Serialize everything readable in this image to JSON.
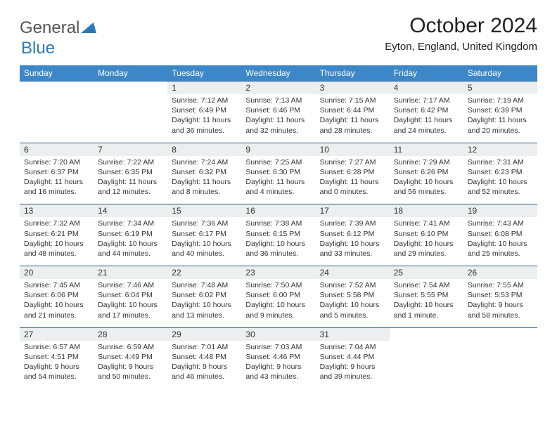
{
  "brand": {
    "part1": "General",
    "part2": "Blue"
  },
  "title": "October 2024",
  "location": "Eyton, England, United Kingdom",
  "colors": {
    "header_bg": "#3b87c8",
    "header_text": "#ffffff",
    "daynum_bg": "#eceeef",
    "border": "#2a5f8a",
    "text": "#333333",
    "brand_gray": "#555555",
    "brand_blue": "#2a7ab8"
  },
  "day_names": [
    "Sunday",
    "Monday",
    "Tuesday",
    "Wednesday",
    "Thursday",
    "Friday",
    "Saturday"
  ],
  "weeks": [
    [
      null,
      null,
      {
        "n": "1",
        "sr": "Sunrise: 7:12 AM",
        "ss": "Sunset: 6:49 PM",
        "dl": "Daylight: 11 hours and 36 minutes."
      },
      {
        "n": "2",
        "sr": "Sunrise: 7:13 AM",
        "ss": "Sunset: 6:46 PM",
        "dl": "Daylight: 11 hours and 32 minutes."
      },
      {
        "n": "3",
        "sr": "Sunrise: 7:15 AM",
        "ss": "Sunset: 6:44 PM",
        "dl": "Daylight: 11 hours and 28 minutes."
      },
      {
        "n": "4",
        "sr": "Sunrise: 7:17 AM",
        "ss": "Sunset: 6:42 PM",
        "dl": "Daylight: 11 hours and 24 minutes."
      },
      {
        "n": "5",
        "sr": "Sunrise: 7:19 AM",
        "ss": "Sunset: 6:39 PM",
        "dl": "Daylight: 11 hours and 20 minutes."
      }
    ],
    [
      {
        "n": "6",
        "sr": "Sunrise: 7:20 AM",
        "ss": "Sunset: 6:37 PM",
        "dl": "Daylight: 11 hours and 16 minutes."
      },
      {
        "n": "7",
        "sr": "Sunrise: 7:22 AM",
        "ss": "Sunset: 6:35 PM",
        "dl": "Daylight: 11 hours and 12 minutes."
      },
      {
        "n": "8",
        "sr": "Sunrise: 7:24 AM",
        "ss": "Sunset: 6:32 PM",
        "dl": "Daylight: 11 hours and 8 minutes."
      },
      {
        "n": "9",
        "sr": "Sunrise: 7:25 AM",
        "ss": "Sunset: 6:30 PM",
        "dl": "Daylight: 11 hours and 4 minutes."
      },
      {
        "n": "10",
        "sr": "Sunrise: 7:27 AM",
        "ss": "Sunset: 6:28 PM",
        "dl": "Daylight: 11 hours and 0 minutes."
      },
      {
        "n": "11",
        "sr": "Sunrise: 7:29 AM",
        "ss": "Sunset: 6:26 PM",
        "dl": "Daylight: 10 hours and 56 minutes."
      },
      {
        "n": "12",
        "sr": "Sunrise: 7:31 AM",
        "ss": "Sunset: 6:23 PM",
        "dl": "Daylight: 10 hours and 52 minutes."
      }
    ],
    [
      {
        "n": "13",
        "sr": "Sunrise: 7:32 AM",
        "ss": "Sunset: 6:21 PM",
        "dl": "Daylight: 10 hours and 48 minutes."
      },
      {
        "n": "14",
        "sr": "Sunrise: 7:34 AM",
        "ss": "Sunset: 6:19 PM",
        "dl": "Daylight: 10 hours and 44 minutes."
      },
      {
        "n": "15",
        "sr": "Sunrise: 7:36 AM",
        "ss": "Sunset: 6:17 PM",
        "dl": "Daylight: 10 hours and 40 minutes."
      },
      {
        "n": "16",
        "sr": "Sunrise: 7:38 AM",
        "ss": "Sunset: 6:15 PM",
        "dl": "Daylight: 10 hours and 36 minutes."
      },
      {
        "n": "17",
        "sr": "Sunrise: 7:39 AM",
        "ss": "Sunset: 6:12 PM",
        "dl": "Daylight: 10 hours and 33 minutes."
      },
      {
        "n": "18",
        "sr": "Sunrise: 7:41 AM",
        "ss": "Sunset: 6:10 PM",
        "dl": "Daylight: 10 hours and 29 minutes."
      },
      {
        "n": "19",
        "sr": "Sunrise: 7:43 AM",
        "ss": "Sunset: 6:08 PM",
        "dl": "Daylight: 10 hours and 25 minutes."
      }
    ],
    [
      {
        "n": "20",
        "sr": "Sunrise: 7:45 AM",
        "ss": "Sunset: 6:06 PM",
        "dl": "Daylight: 10 hours and 21 minutes."
      },
      {
        "n": "21",
        "sr": "Sunrise: 7:46 AM",
        "ss": "Sunset: 6:04 PM",
        "dl": "Daylight: 10 hours and 17 minutes."
      },
      {
        "n": "22",
        "sr": "Sunrise: 7:48 AM",
        "ss": "Sunset: 6:02 PM",
        "dl": "Daylight: 10 hours and 13 minutes."
      },
      {
        "n": "23",
        "sr": "Sunrise: 7:50 AM",
        "ss": "Sunset: 6:00 PM",
        "dl": "Daylight: 10 hours and 9 minutes."
      },
      {
        "n": "24",
        "sr": "Sunrise: 7:52 AM",
        "ss": "Sunset: 5:58 PM",
        "dl": "Daylight: 10 hours and 5 minutes."
      },
      {
        "n": "25",
        "sr": "Sunrise: 7:54 AM",
        "ss": "Sunset: 5:55 PM",
        "dl": "Daylight: 10 hours and 1 minute."
      },
      {
        "n": "26",
        "sr": "Sunrise: 7:55 AM",
        "ss": "Sunset: 5:53 PM",
        "dl": "Daylight: 9 hours and 58 minutes."
      }
    ],
    [
      {
        "n": "27",
        "sr": "Sunrise: 6:57 AM",
        "ss": "Sunset: 4:51 PM",
        "dl": "Daylight: 9 hours and 54 minutes."
      },
      {
        "n": "28",
        "sr": "Sunrise: 6:59 AM",
        "ss": "Sunset: 4:49 PM",
        "dl": "Daylight: 9 hours and 50 minutes."
      },
      {
        "n": "29",
        "sr": "Sunrise: 7:01 AM",
        "ss": "Sunset: 4:48 PM",
        "dl": "Daylight: 9 hours and 46 minutes."
      },
      {
        "n": "30",
        "sr": "Sunrise: 7:03 AM",
        "ss": "Sunset: 4:46 PM",
        "dl": "Daylight: 9 hours and 43 minutes."
      },
      {
        "n": "31",
        "sr": "Sunrise: 7:04 AM",
        "ss": "Sunset: 4:44 PM",
        "dl": "Daylight: 9 hours and 39 minutes."
      },
      null,
      null
    ]
  ]
}
